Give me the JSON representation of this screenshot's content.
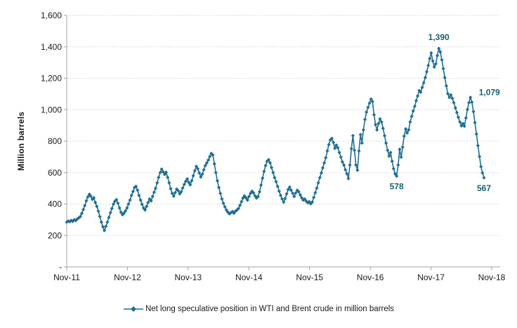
{
  "chart_data": {
    "type": "line",
    "title": "",
    "xlabel": "",
    "ylabel": "Million barrels",
    "ylim": [
      0,
      1600
    ],
    "y_tick_step": 200,
    "grid": true,
    "legend": {
      "position": "bottom-center",
      "label": "Net long speculative position in WTI and Brent crude in million barrels"
    },
    "x_tick_labels": [
      "Nov-11",
      "Nov-12",
      "Nov-13",
      "Nov-14",
      "Nov-15",
      "Nov-16",
      "Nov-17",
      "Nov-18"
    ],
    "y_tick_labels": [
      "-",
      "200",
      "400",
      "600",
      "800",
      "1,000",
      "1,200",
      "1,400",
      "1,600"
    ],
    "series": [
      {
        "name": "Net long speculative position in WTI and Brent crude in million barrels",
        "values": [
          285,
          292,
          288,
          296,
          290,
          300,
          295,
          305,
          312,
          320,
          340,
          365,
          390,
          420,
          445,
          462,
          450,
          430,
          440,
          410,
          385,
          355,
          320,
          285,
          255,
          232,
          258,
          285,
          315,
          345,
          372,
          400,
          418,
          428,
          405,
          375,
          348,
          332,
          342,
          356,
          375,
          400,
          425,
          455,
          480,
          505,
          512,
          488,
          455,
          425,
          398,
          375,
          362,
          385,
          410,
          432,
          420,
          448,
          475,
          500,
          535,
          570,
          600,
          622,
          605,
          588,
          602,
          570,
          535,
          498,
          468,
          450,
          472,
          495,
          485,
          465,
          478,
          502,
          525,
          545,
          560,
          538,
          522,
          548,
          580,
          612,
          640,
          625,
          598,
          572,
          590,
          618,
          645,
          662,
          680,
          702,
          722,
          712,
          655,
          600,
          548,
          505,
          468,
          432,
          405,
          382,
          362,
          348,
          338,
          345,
          352,
          342,
          355,
          362,
          372,
          392,
          415,
          438,
          452,
          440,
          425,
          448,
          468,
          482,
          470,
          452,
          438,
          448,
          478,
          520,
          565,
          608,
          645,
          672,
          682,
          662,
          632,
          600,
          568,
          542,
          512,
          482,
          455,
          432,
          412,
          435,
          465,
          492,
          508,
          488,
          468,
          448,
          470,
          488,
          478,
          458,
          440,
          425,
          432,
          418,
          408,
          415,
          402,
          412,
          442,
          472,
          502,
          535,
          568,
          598,
          630,
          662,
          695,
          738,
          778,
          808,
          818,
          792,
          755,
          775,
          758,
          728,
          698,
          668,
          648,
          618,
          592,
          562,
          648,
          752,
          835,
          742,
          648,
          615,
          738,
          842,
          788,
          872,
          938,
          985,
          1015,
          1042,
          1068,
          1052,
          968,
          905,
          872,
          912,
          942,
          922,
          882,
          835,
          788,
          742,
          705,
          728,
          672,
          625,
          592,
          578,
          648,
          748,
          698,
          762,
          832,
          878,
          852,
          872,
          922,
          958,
          992,
          1022,
          1058,
          1088,
          1122,
          1112,
          1142,
          1172,
          1205,
          1242,
          1282,
          1325,
          1362,
          1310,
          1272,
          1292,
          1345,
          1390,
          1368,
          1318,
          1262,
          1205,
          1152,
          1102,
          1078,
          1095,
          1072,
          1045,
          1012,
          982,
          952,
          922,
          898,
          912,
          895,
          948,
          1002,
          1045,
          1079,
          1048,
          988,
          918,
          845,
          772,
          702,
          638,
          598,
          567
        ]
      }
    ],
    "annotations": [
      {
        "label": "1,390",
        "index": 247,
        "value": 1390,
        "placement": "above"
      },
      {
        "label": "1,079",
        "index": 268,
        "value": 1079,
        "placement": "right"
      },
      {
        "label": "578",
        "index": 219,
        "value": 578,
        "placement": "below"
      },
      {
        "label": "567",
        "index": 277,
        "value": 567,
        "placement": "below"
      }
    ],
    "colors": {
      "series": "#1F6E93",
      "marker": "#1F6E93",
      "annotation": "#17626F",
      "axis": "#A6A6A6",
      "grid": "#D9D9D9",
      "tick_text": "#1A1A1A"
    }
  }
}
